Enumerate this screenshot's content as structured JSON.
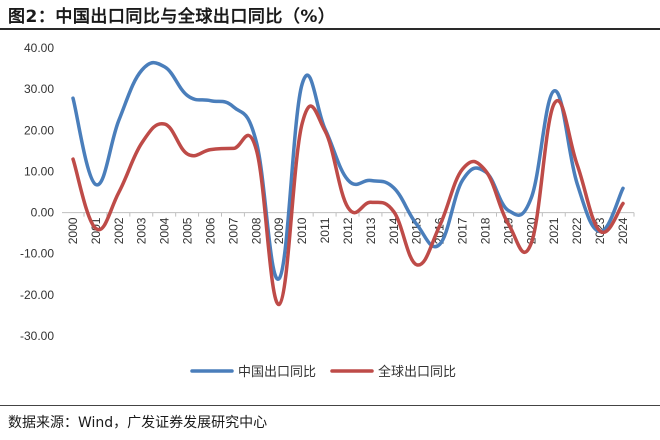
{
  "title": "图2：中国出口同比与全球出口同比（%）",
  "source": "数据来源：Wind，广发证券发展研究中心",
  "chart_data": {
    "type": "line",
    "title": "图2：中国出口同比与全球出口同比（%）",
    "xlabel": "",
    "ylabel": "",
    "x": [
      "2000",
      "2001",
      "2002",
      "2003",
      "2004",
      "2005",
      "2006",
      "2007",
      "2008",
      "2009",
      "2010",
      "2011",
      "2012",
      "2013",
      "2014",
      "2015",
      "2016",
      "2017",
      "2018",
      "2019",
      "2020",
      "2021",
      "2022",
      "2023",
      "2024"
    ],
    "ylim": [
      -30,
      40
    ],
    "yticks": [
      "40.00",
      "30.00",
      "20.00",
      "10.00",
      "0.00",
      "-10.00",
      "-20.00",
      "-30.00"
    ],
    "legend_position": "bottom",
    "grid": false,
    "series": [
      {
        "name": "中国出口同比",
        "color": "#4a7ebb",
        "values": [
          27.8,
          6.8,
          22.4,
          34.6,
          35.4,
          28.4,
          27.2,
          25.7,
          17.2,
          -16.0,
          31.3,
          20.3,
          7.9,
          7.8,
          6.0,
          -2.9,
          -7.7,
          7.9,
          9.9,
          0.5,
          3.6,
          29.6,
          7.0,
          -4.6,
          5.9
        ]
      },
      {
        "name": "全球出口同比",
        "color": "#be4b48",
        "values": [
          13.0,
          -3.9,
          4.9,
          16.9,
          21.5,
          14.2,
          15.3,
          15.6,
          15.3,
          -22.3,
          21.7,
          19.8,
          1.2,
          2.5,
          0.2,
          -12.7,
          -3.2,
          10.6,
          10.2,
          -2.8,
          -7.4,
          26.5,
          11.6,
          -4.5,
          2.2
        ]
      }
    ]
  }
}
